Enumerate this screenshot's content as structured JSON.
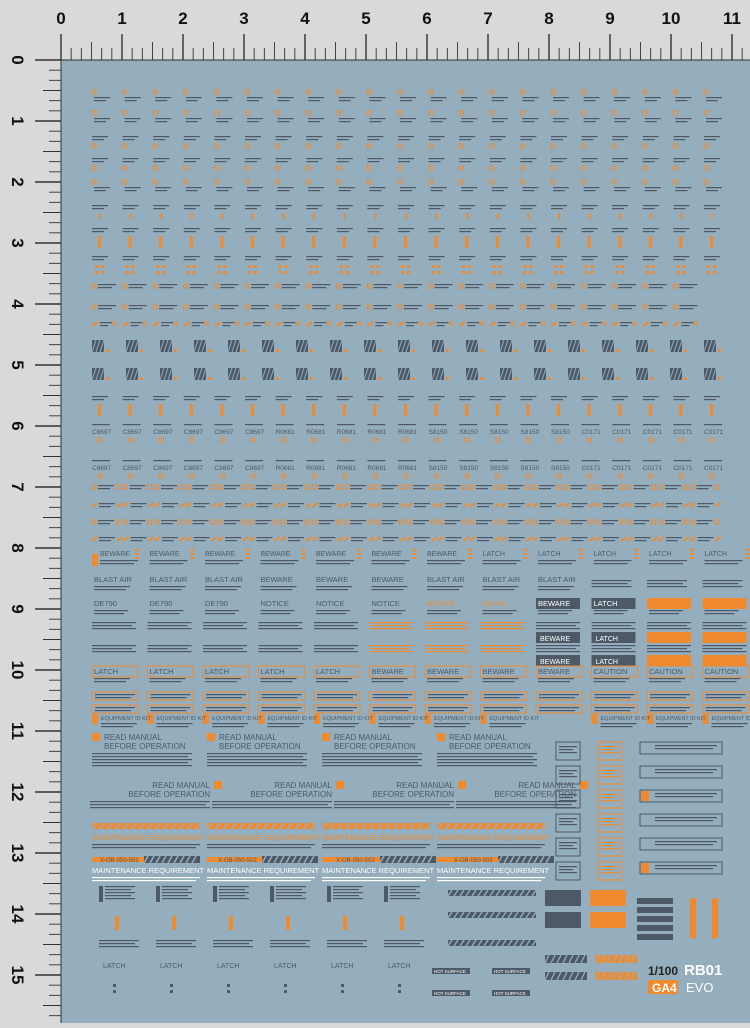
{
  "ruler": {
    "top_numbers": [
      "0",
      "1",
      "2",
      "3",
      "4",
      "5",
      "6",
      "7",
      "8",
      "9",
      "10",
      "11"
    ],
    "left_numbers": [
      "0",
      "1",
      "2",
      "3",
      "4",
      "5",
      "6",
      "7",
      "8",
      "9",
      "10",
      "11",
      "12",
      "13",
      "14",
      "15"
    ]
  },
  "colors": {
    "sheet": "#94aebd",
    "ruler_bg": "#d9d9d9",
    "ink": "#4d5966",
    "accent": "#f08a2e",
    "white": "#ffffff"
  },
  "decals": {
    "rows_codes": [
      "C8697",
      "R0681",
      "S8150",
      "C0171"
    ],
    "beware": "BEWARE",
    "latch": "LATCH",
    "blast_air": "BLAST AIR",
    "notice": "NOTICE",
    "de790": "DE790",
    "caution": "CAUTION",
    "equipment": "EQUIPMENT ID KIT",
    "read_manual_1": "READ MANUAL",
    "read_manual_2": "BEFORE OPERATION",
    "maintenance": "MAINTENANCE REQUIREMENT",
    "hot_surface": "HOT SURFACE",
    "code_strip": "X-OB-050-502"
  },
  "brand": {
    "scale": "1/100",
    "logo": "RB01",
    "series": "EVO",
    "code": "GA4"
  }
}
